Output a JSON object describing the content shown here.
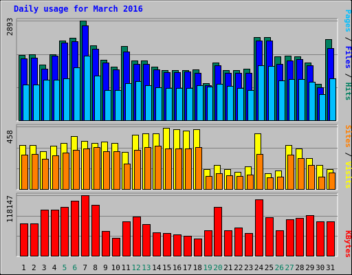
{
  "chart_data": [
    {
      "type": "bar",
      "title": "Daily usage for March 2016",
      "categories": [
        "1",
        "2",
        "3",
        "4",
        "5",
        "6",
        "7",
        "8",
        "9",
        "10",
        "11",
        "12",
        "13",
        "14",
        "15",
        "16",
        "17",
        "18",
        "19",
        "20",
        "21",
        "22",
        "23",
        "24",
        "25",
        "26",
        "27",
        "28",
        "29",
        "30",
        "31"
      ],
      "weekend_days": [
        "5",
        "6",
        "12",
        "13",
        "19",
        "20",
        "26",
        "27"
      ],
      "ymax_label": "2893",
      "ymax": 2893,
      "ylabel_parts": [
        "Pages",
        "Files",
        "Hits"
      ],
      "ylabel_sep": " / ",
      "series": [
        {
          "name": "Hits",
          "color": "#007f5f",
          "values": [
            1900,
            1920,
            1620,
            1920,
            2320,
            2400,
            2893,
            2180,
            1760,
            1560,
            2160,
            1740,
            1740,
            1560,
            1470,
            1470,
            1470,
            1480,
            1080,
            1680,
            1470,
            1470,
            1510,
            2420,
            2420,
            1860,
            1890,
            1860,
            1680,
            1070,
            2350
          ]
        },
        {
          "name": "Files",
          "color": "#0000ff",
          "values": [
            1800,
            1820,
            1500,
            1890,
            2250,
            2300,
            2750,
            2080,
            1680,
            1480,
            2000,
            1650,
            1640,
            1480,
            1410,
            1400,
            1420,
            1390,
            1030,
            1600,
            1390,
            1390,
            1390,
            2320,
            2320,
            1640,
            1750,
            1780,
            1600,
            980,
            2100
          ]
        },
        {
          "name": "Pages",
          "color": "#00bfff",
          "values": [
            1050,
            1060,
            1190,
            1180,
            1220,
            1550,
            1880,
            1310,
            890,
            900,
            1080,
            1150,
            1040,
            970,
            960,
            960,
            960,
            1040,
            1000,
            1070,
            1020,
            950,
            900,
            1600,
            1580,
            1160,
            1210,
            1200,
            1130,
            770,
            1220
          ]
        }
      ]
    },
    {
      "type": "bar",
      "ymax_label": "458",
      "ymax": 458,
      "ylabel_parts": [
        "Sites",
        "Visits"
      ],
      "ylabel_sep": " / ",
      "series": [
        {
          "name": "Visits",
          "color": "#ffff00",
          "values": [
            322,
            322,
            280,
            320,
            340,
            390,
            355,
            340,
            350,
            340,
            275,
            400,
            410,
            410,
            450,
            440,
            430,
            440,
            150,
            180,
            150,
            130,
            170,
            410,
            120,
            140,
            322,
            300,
            230,
            180,
            150
          ]
        },
        {
          "name": "Sites",
          "color": "#ff7f00",
          "values": [
            255,
            260,
            225,
            250,
            270,
            288,
            300,
            310,
            280,
            278,
            190,
            290,
            310,
            320,
            300,
            300,
            300,
            310,
            100,
            120,
            105,
            100,
            110,
            258,
            90,
            95,
            255,
            230,
            180,
            95,
            125
          ]
        }
      ]
    },
    {
      "type": "bar",
      "ymax_label": "118147",
      "ymax": 118147,
      "ylabel_parts": [
        "KBytes"
      ],
      "ylabel_sep": "",
      "series": [
        {
          "name": "KBytes",
          "color": "#ff0000",
          "values": [
            64000,
            64000,
            90000,
            90000,
            95000,
            108000,
            118147,
            99000,
            49000,
            36000,
            68000,
            77000,
            63000,
            46000,
            45000,
            43000,
            40000,
            34000,
            51000,
            96000,
            50000,
            56000,
            45000,
            110000,
            76000,
            51000,
            72000,
            75000,
            79000,
            68000,
            68000
          ]
        }
      ]
    }
  ]
}
